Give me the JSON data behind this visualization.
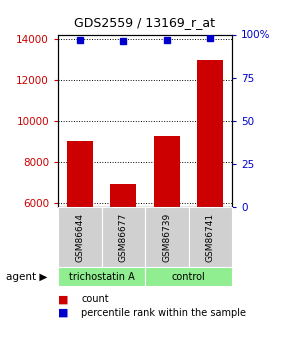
{
  "title": "GDS2559 / 13169_r_at",
  "samples": [
    "GSM86644",
    "GSM86677",
    "GSM86739",
    "GSM86741"
  ],
  "counts": [
    9000,
    6900,
    9250,
    12950
  ],
  "percentile_ranks": [
    97,
    96,
    97,
    98
  ],
  "groups": [
    "trichostatin A",
    "trichostatin A",
    "control",
    "control"
  ],
  "bar_color": "#CC0000",
  "dot_color": "#0000CC",
  "ylim_left": [
    5800,
    14200
  ],
  "ylim_right": [
    0,
    100
  ],
  "yticks_left": [
    6000,
    8000,
    10000,
    12000,
    14000
  ],
  "yticks_right": [
    0,
    25,
    50,
    75,
    100
  ],
  "ytick_labels_right": [
    "0",
    "25",
    "50",
    "75",
    "100%"
  ],
  "label_color_left": "#CC0000",
  "label_color_right": "#0000CC",
  "legend_count_label": "count",
  "legend_pct_label": "percentile rank within the sample",
  "sample_box_color": "#d0d0d0",
  "group_box_color": "#90EE90"
}
